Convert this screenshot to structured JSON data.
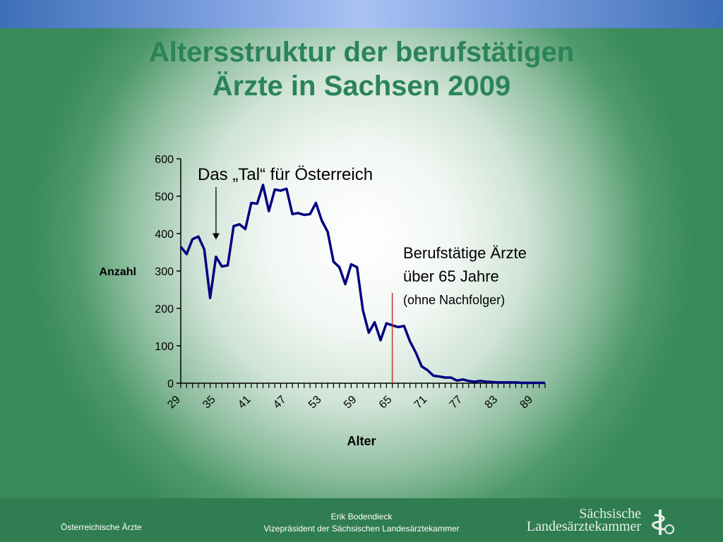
{
  "slide": {
    "title_line1": "Altersstruktur der berufstätigen",
    "title_line2": "Ärzte in Sachsen 2009"
  },
  "footer": {
    "left_text": "Österreichische Ärzte",
    "author": "Erik Bodendieck",
    "role": "Vizepräsident der Sächsischen Landesärztekammer",
    "logo_line1": "Sächsische",
    "logo_line2": "Landesärztekammer"
  },
  "colors": {
    "title": "#2a8458",
    "series_line": "#000080",
    "marker_line": "#c0392b",
    "footer_bg": "#2f7d51",
    "topbar": "#7d9fe0"
  },
  "chart_data": {
    "type": "line",
    "xlabel": "Alter",
    "ylabel": "Anzahl",
    "ylim": [
      0,
      600
    ],
    "yticks": [
      0,
      100,
      200,
      300,
      400,
      500,
      600
    ],
    "xlim": [
      29,
      91
    ],
    "xtick_labels": [
      "29",
      "35",
      "41",
      "47",
      "53",
      "59",
      "65",
      "71",
      "77",
      "83",
      "89"
    ],
    "grid": false,
    "x": [
      29,
      30,
      31,
      32,
      33,
      34,
      35,
      36,
      37,
      38,
      39,
      40,
      41,
      42,
      43,
      44,
      45,
      46,
      47,
      48,
      49,
      50,
      51,
      52,
      53,
      54,
      55,
      56,
      57,
      58,
      59,
      60,
      61,
      62,
      63,
      64,
      65,
      66,
      67,
      68,
      69,
      70,
      71,
      72,
      73,
      74,
      75,
      76,
      77,
      78,
      79,
      80,
      81,
      82,
      83,
      84,
      85,
      86,
      87,
      88,
      89,
      90,
      91
    ],
    "series": [
      {
        "values": [
          365,
          345,
          385,
          392,
          358,
          228,
          338,
          312,
          315,
          420,
          425,
          412,
          482,
          480,
          530,
          460,
          518,
          515,
          520,
          452,
          455,
          450,
          452,
          482,
          435,
          405,
          325,
          310,
          265,
          318,
          310,
          195,
          135,
          163,
          115,
          160,
          155,
          150,
          153,
          112,
          82,
          45,
          35,
          20,
          18,
          15,
          15,
          7,
          10,
          6,
          4,
          6,
          4,
          3,
          2,
          2,
          2,
          2,
          1,
          1,
          1,
          1,
          1
        ]
      }
    ],
    "annotations": {
      "tal_label": "Das „Tal“ für Österreich",
      "tal_arrow_x": 35,
      "tal_arrow_value": 365,
      "over65_line1": "Berufstätige Ärzte",
      "over65_line2": "über 65 Jahre",
      "over65_line3": "(ohne Nachfolger)",
      "marker_x": 65
    }
  }
}
